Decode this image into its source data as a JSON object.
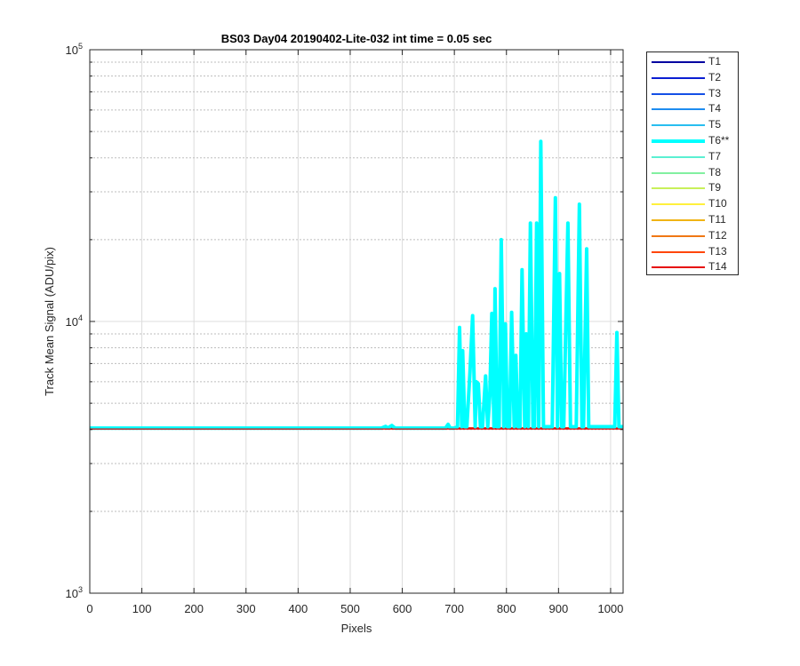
{
  "chart_data": {
    "type": "line",
    "title": "BS03 Day04 20190402-Lite-032 int time = 0.05 sec",
    "xlabel": "Pixels",
    "ylabel": "Track Mean Signal (ADU/pix)",
    "xlim": [
      0,
      1024
    ],
    "ylim": [
      1000,
      100000
    ],
    "yscale": "log",
    "grid": true,
    "legend_position": "outside-top-right",
    "x_ticks": [
      0,
      100,
      200,
      300,
      400,
      500,
      600,
      700,
      800,
      900,
      1000
    ],
    "y_ticks": [
      {
        "value": 1000,
        "base": "10",
        "exp": "3"
      },
      {
        "value": 10000,
        "base": "10",
        "exp": "4"
      },
      {
        "value": 100000,
        "base": "10",
        "exp": "5"
      }
    ],
    "baseline_value": 4050,
    "series": [
      {
        "name": "T1",
        "color": "#0000a0",
        "highlight": false
      },
      {
        "name": "T2",
        "color": "#0a1ed2",
        "highlight": false
      },
      {
        "name": "T3",
        "color": "#1450e6",
        "highlight": false
      },
      {
        "name": "T4",
        "color": "#1e8cf0",
        "highlight": false
      },
      {
        "name": "T5",
        "color": "#28bef0",
        "highlight": false
      },
      {
        "name": "T6**",
        "color": "#00ffff",
        "highlight": true,
        "points": [
          [
            0,
            4050
          ],
          [
            560,
            4050
          ],
          [
            568,
            4110
          ],
          [
            572,
            4050
          ],
          [
            580,
            4140
          ],
          [
            586,
            4050
          ],
          [
            683,
            4050
          ],
          [
            688,
            4180
          ],
          [
            692,
            4050
          ],
          [
            700,
            4050
          ],
          [
            706,
            4100
          ],
          [
            710,
            9500
          ],
          [
            714,
            4100
          ],
          [
            716,
            7800
          ],
          [
            720,
            4100
          ],
          [
            724,
            4100
          ],
          [
            730,
            6500
          ],
          [
            735,
            10500
          ],
          [
            740,
            4100
          ],
          [
            742,
            6000
          ],
          [
            746,
            5900
          ],
          [
            750,
            4100
          ],
          [
            754,
            4100
          ],
          [
            760,
            6300
          ],
          [
            764,
            4100
          ],
          [
            768,
            5300
          ],
          [
            772,
            10700
          ],
          [
            776,
            4100
          ],
          [
            778,
            13200
          ],
          [
            782,
            4100
          ],
          [
            786,
            4100
          ],
          [
            790,
            20000
          ],
          [
            795,
            4100
          ],
          [
            798,
            9800
          ],
          [
            802,
            4100
          ],
          [
            806,
            4100
          ],
          [
            810,
            10800
          ],
          [
            815,
            4100
          ],
          [
            818,
            7500
          ],
          [
            822,
            4100
          ],
          [
            826,
            4100
          ],
          [
            830,
            15500
          ],
          [
            835,
            4100
          ],
          [
            838,
            9000
          ],
          [
            842,
            4100
          ],
          [
            846,
            23000
          ],
          [
            851,
            4100
          ],
          [
            854,
            4100
          ],
          [
            858,
            23000
          ],
          [
            862,
            4100
          ],
          [
            866,
            46000
          ],
          [
            871,
            4100
          ],
          [
            876,
            4100
          ],
          [
            882,
            4100
          ],
          [
            888,
            4100
          ],
          [
            894,
            28500
          ],
          [
            898,
            4100
          ],
          [
            902,
            15000
          ],
          [
            906,
            4100
          ],
          [
            910,
            4100
          ],
          [
            918,
            23000
          ],
          [
            923,
            4100
          ],
          [
            928,
            4100
          ],
          [
            934,
            4100
          ],
          [
            940,
            27000
          ],
          [
            945,
            4100
          ],
          [
            948,
            4100
          ],
          [
            954,
            18500
          ],
          [
            958,
            4100
          ],
          [
            962,
            4100
          ],
          [
            1008,
            4100
          ],
          [
            1012,
            9100
          ],
          [
            1016,
            4100
          ],
          [
            1024,
            4100
          ]
        ]
      },
      {
        "name": "T7",
        "color": "#5af0d2",
        "highlight": false
      },
      {
        "name": "T8",
        "color": "#82f0a0",
        "highlight": false
      },
      {
        "name": "T9",
        "color": "#c8f05a",
        "highlight": false
      },
      {
        "name": "T10",
        "color": "#fff03c",
        "highlight": false
      },
      {
        "name": "T11",
        "color": "#f0b414",
        "highlight": false
      },
      {
        "name": "T12",
        "color": "#f07814",
        "highlight": false
      },
      {
        "name": "T13",
        "color": "#ff460a",
        "highlight": false
      },
      {
        "name": "T14",
        "color": "#e60a0a",
        "highlight": false
      }
    ]
  }
}
